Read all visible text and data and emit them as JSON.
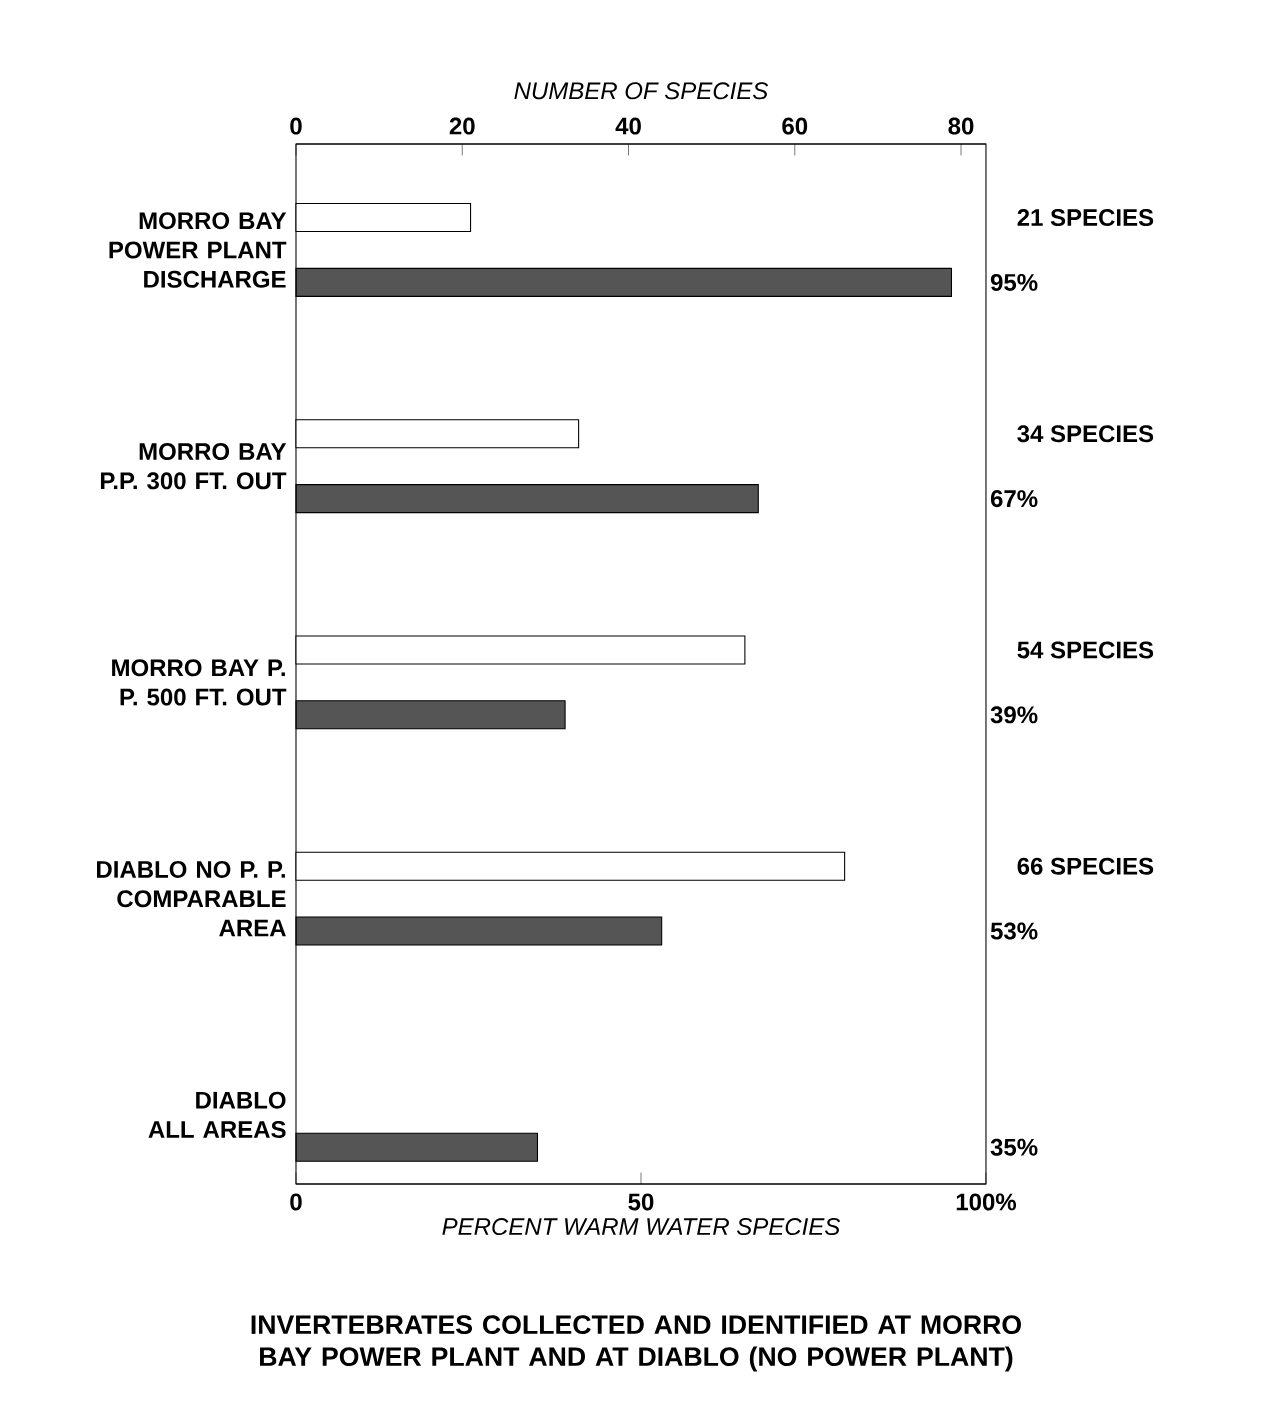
{
  "chart_data": {
    "type": "bar",
    "orientation": "horizontal",
    "title": "INVERTEBRATES COLLECTED AND IDENTIFIED AT MORRO BAY POWER PLANT AND AT DIABLO (NO POWER PLANT)",
    "x2label": "NUMBER OF SPECIES",
    "xlabel": "PERCENT WARM WATER SPECIES",
    "categories": [
      "MORRO BAY POWER PLANT DISCHARGE",
      "MORRO BAY P.P. 300 FT. OUT",
      "MORRO BAY P. P. 500 FT. OUT",
      "DIABLO NO P. P. COMPARABLE AREA",
      "DIABLO ALL AREAS"
    ],
    "series": [
      {
        "color": "#ffffff",
        "axis": "x2",
        "values": [
          21,
          34,
          54,
          66,
          null
        ],
        "value_labels": [
          "21 SPECIES",
          "34 SPECIES",
          "54 SPECIES",
          "66 SPECIES",
          null
        ]
      },
      {
        "color": "#555555",
        "values": [
          95,
          67,
          39,
          53,
          35
        ],
        "value_labels": [
          "95%",
          "67%",
          "39%",
          "53%",
          "35%"
        ]
      }
    ],
    "xlim": [
      0,
      100
    ],
    "xticks": [
      0,
      50,
      {
        "value": 100,
        "label": "100%"
      }
    ],
    "x2lim": [
      0,
      83
    ],
    "x2ticks": [
      0,
      20,
      40,
      60,
      80
    ],
    "grid": false
  }
}
